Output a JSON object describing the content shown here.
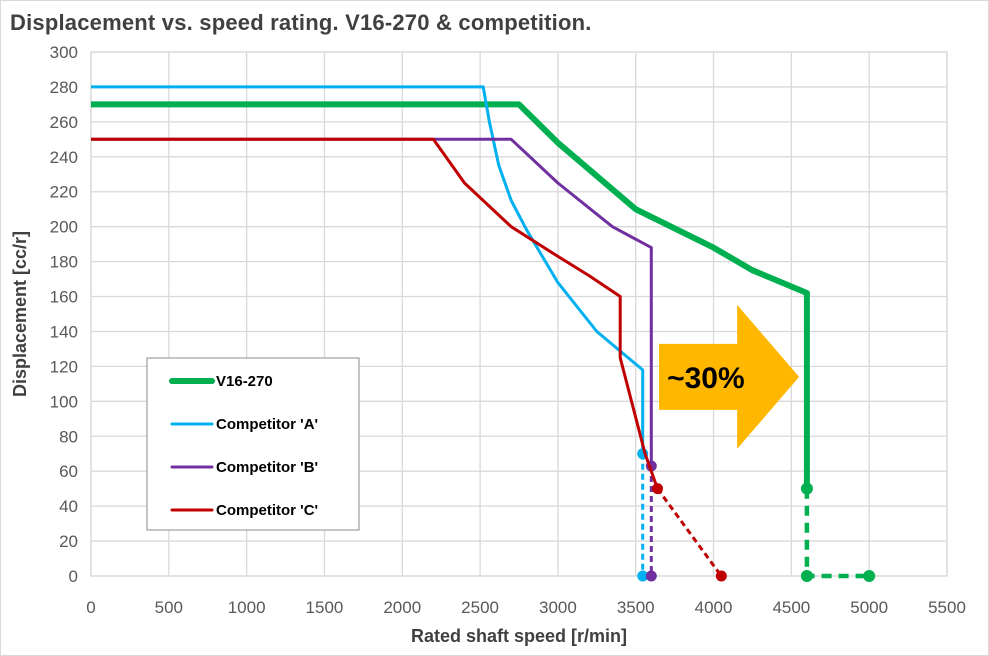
{
  "chart_data": {
    "type": "line",
    "title": "Displacement vs. speed rating.  V16-270 & competition.",
    "xlabel": "Rated shaft speed [r/min]",
    "ylabel": "Displacement [cc/r]",
    "xlim": [
      0,
      5500
    ],
    "ylim": [
      0,
      300
    ],
    "xticks": [
      "0",
      "500",
      "1000",
      "1500",
      "2000",
      "2500",
      "3000",
      "3500",
      "4000",
      "4500",
      "5000",
      "5500"
    ],
    "yticks": [
      "0",
      "20",
      "40",
      "60",
      "80",
      "100",
      "120",
      "140",
      "160",
      "180",
      "200",
      "220",
      "240",
      "260",
      "280",
      "300"
    ],
    "grid": true,
    "legend_position": "left-middle",
    "series": [
      {
        "name": "V16-270",
        "color": "#00b050",
        "width": "thick",
        "solid": [
          [
            0,
            270
          ],
          [
            2750,
            270
          ],
          [
            3000,
            248
          ],
          [
            3500,
            210
          ],
          [
            4000,
            188
          ],
          [
            4250,
            175
          ],
          [
            4600,
            162
          ],
          [
            4600,
            50
          ]
        ],
        "dashed": [
          [
            4600,
            50
          ],
          [
            4600,
            0
          ],
          [
            5000,
            0
          ]
        ],
        "markers": [
          [
            4600,
            50
          ],
          [
            4600,
            0
          ],
          [
            5000,
            0
          ]
        ]
      },
      {
        "name": "Competitor 'A'",
        "color": "#00b0f0",
        "width": "normal",
        "solid": [
          [
            0,
            280
          ],
          [
            2520,
            280
          ],
          [
            2560,
            260
          ],
          [
            2620,
            235
          ],
          [
            2700,
            215
          ],
          [
            2800,
            198
          ],
          [
            3000,
            168
          ],
          [
            3250,
            140
          ],
          [
            3545,
            118
          ],
          [
            3545,
            70
          ]
        ],
        "dashed": [
          [
            3545,
            70
          ],
          [
            3545,
            0
          ]
        ],
        "markers": [
          [
            3545,
            70
          ],
          [
            3545,
            0
          ]
        ]
      },
      {
        "name": "Competitor 'B'",
        "color": "#7030a0",
        "width": "normal",
        "solid": [
          [
            0,
            250
          ],
          [
            2700,
            250
          ],
          [
            3000,
            225
          ],
          [
            3350,
            200
          ],
          [
            3600,
            188
          ],
          [
            3600,
            63
          ]
        ],
        "dashed": [
          [
            3600,
            63
          ],
          [
            3600,
            0
          ]
        ],
        "markers": [
          [
            3600,
            63
          ],
          [
            3600,
            0
          ]
        ]
      },
      {
        "name": "Competitor 'C'",
        "color": "#c00000",
        "width": "normal",
        "solid": [
          [
            0,
            250
          ],
          [
            2200,
            250
          ],
          [
            2400,
            225
          ],
          [
            2700,
            200
          ],
          [
            3000,
            183
          ],
          [
            3200,
            172
          ],
          [
            3400,
            160
          ],
          [
            3400,
            125
          ],
          [
            3560,
            70
          ],
          [
            3640,
            50
          ]
        ],
        "dashed": [
          [
            3640,
            50
          ],
          [
            4050,
            0
          ]
        ],
        "markers": [
          [
            3640,
            50
          ],
          [
            4050,
            0
          ]
        ]
      }
    ],
    "annotation": {
      "text": "~30%",
      "color": "#ffb700",
      "shape": "right-arrow",
      "from_x": 3650,
      "to_x": 4550
    }
  }
}
